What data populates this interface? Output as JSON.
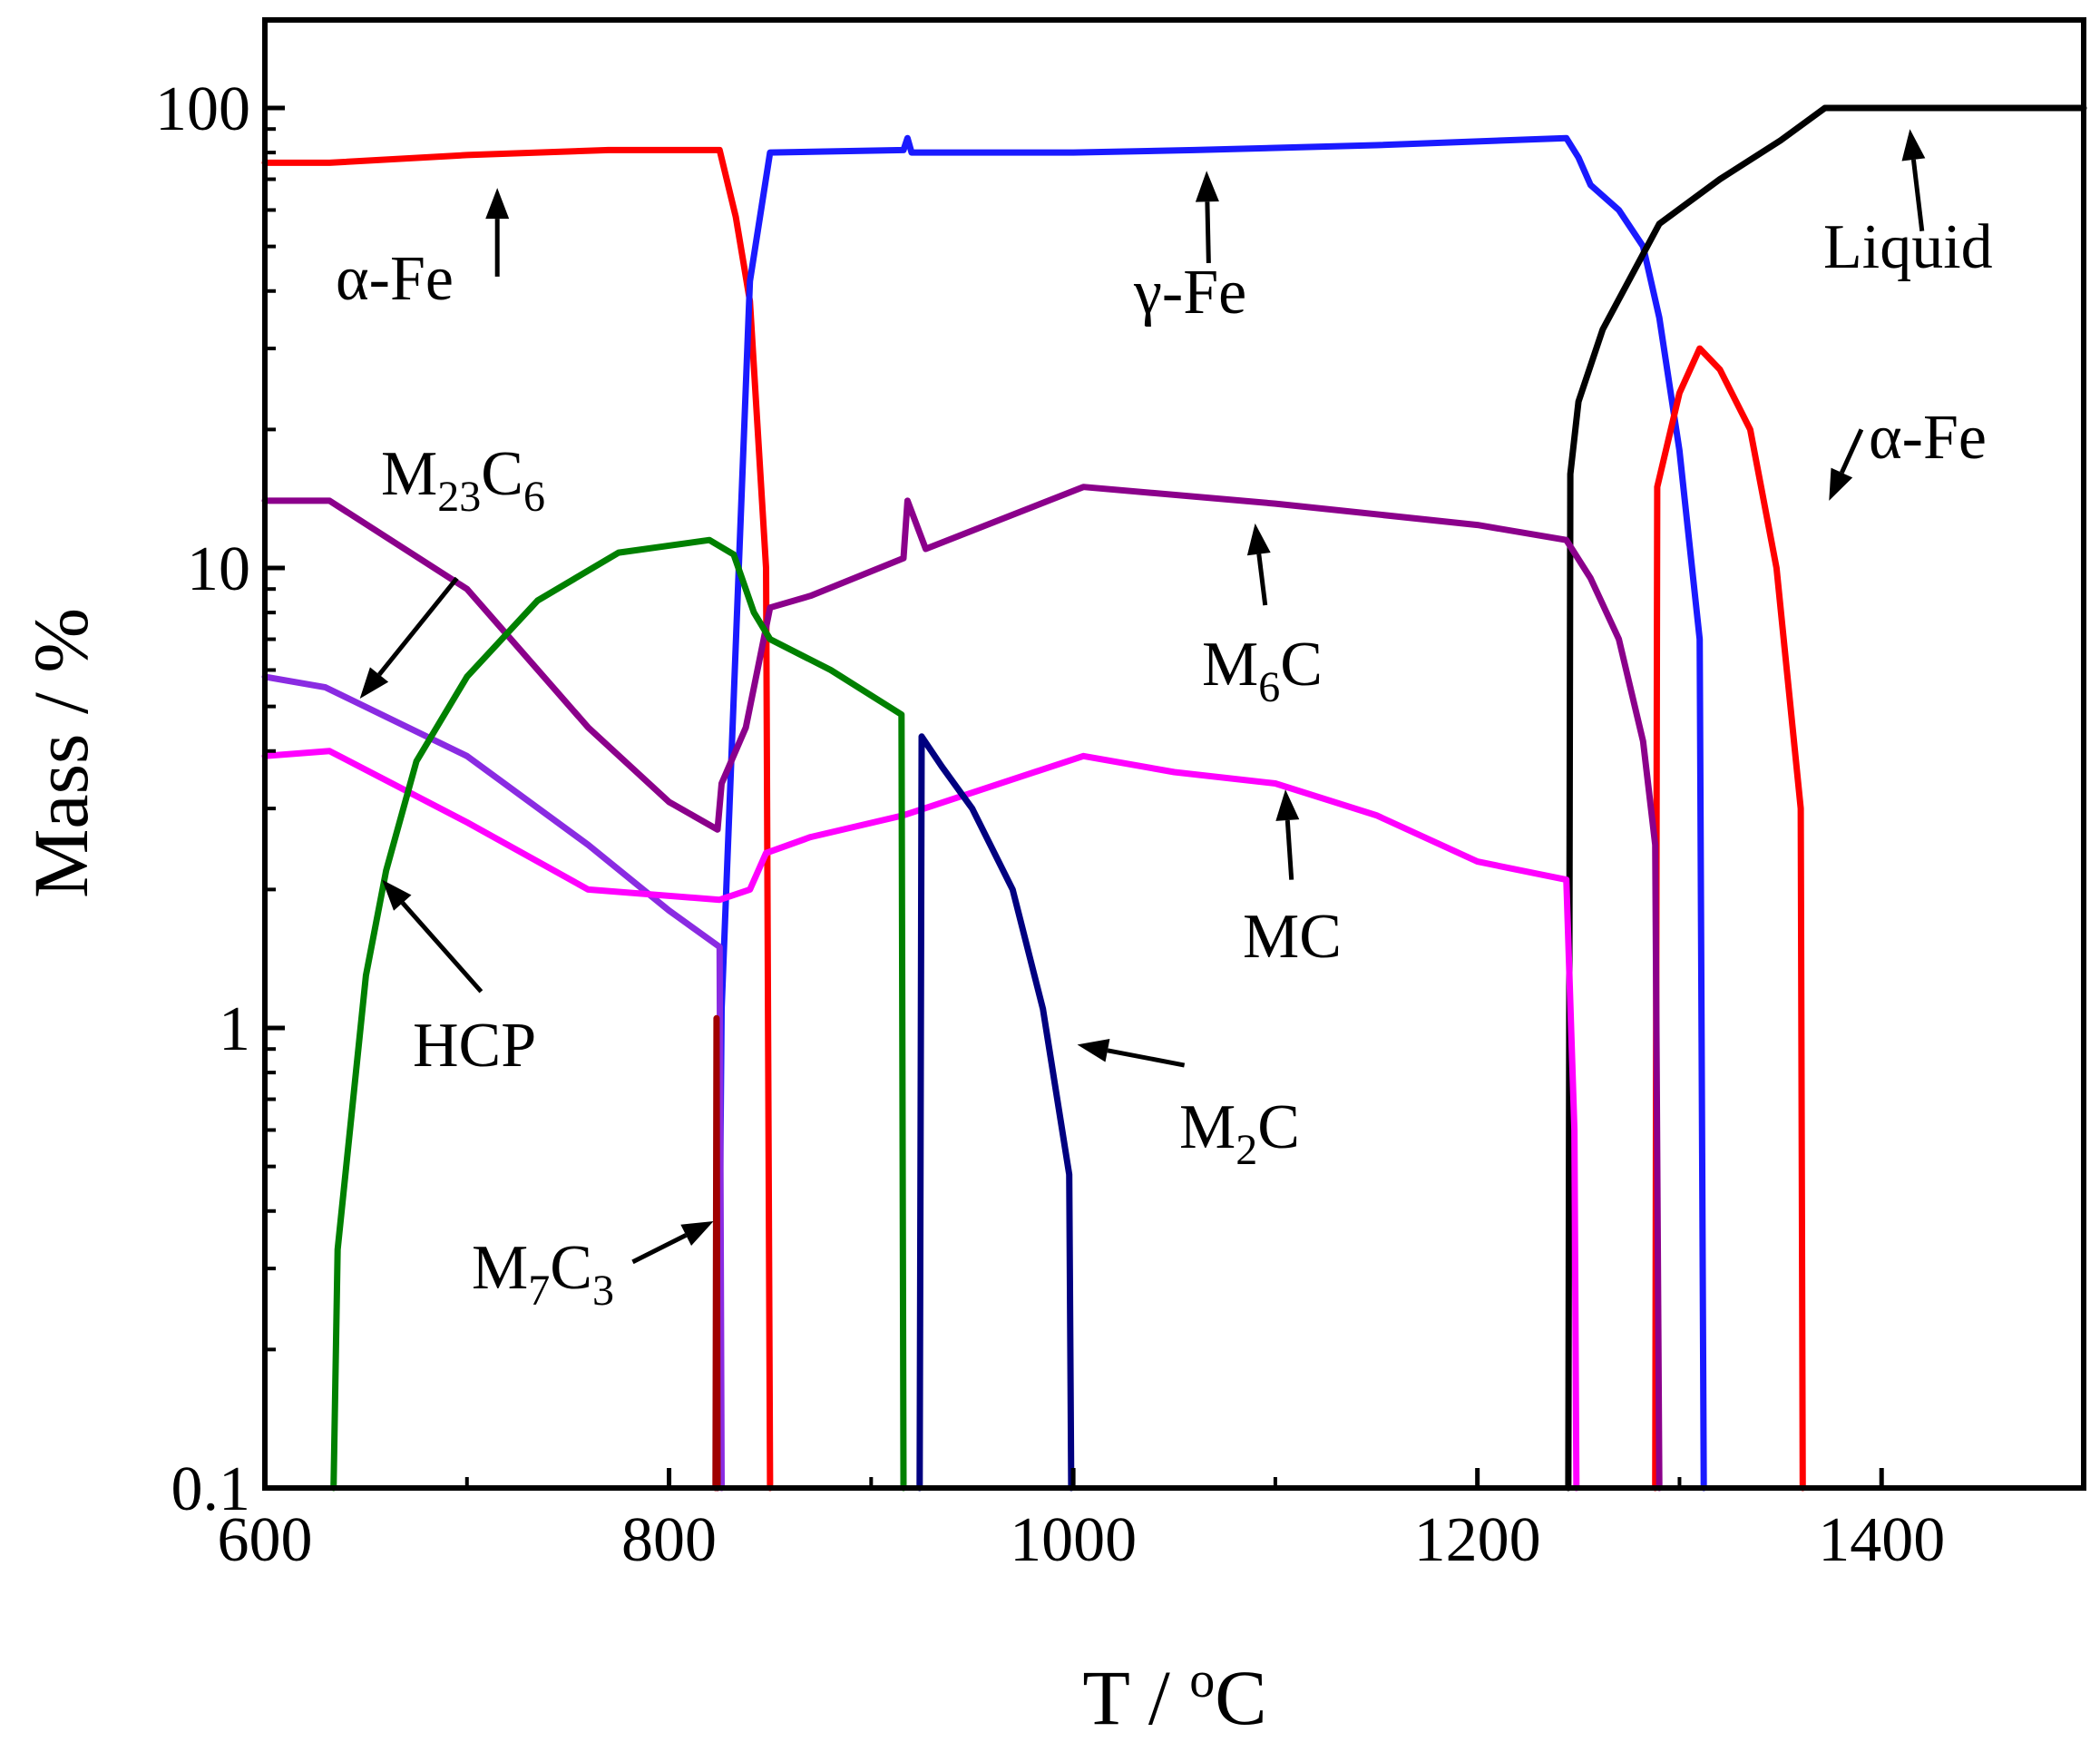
{
  "chart_data": {
    "type": "line",
    "title": "",
    "xlabel": "T / oC",
    "ylabel": "Mass / %",
    "xscale": "linear",
    "yscale": "log",
    "xlim": [
      600,
      1500
    ],
    "ylim": [
      0.1,
      160
    ],
    "grid": false,
    "legend": "none",
    "x_ticks": [
      {
        "value": 600,
        "label": "600"
      },
      {
        "value": 800,
        "label": "800"
      },
      {
        "value": 1000,
        "label": "1000"
      },
      {
        "value": 1200,
        "label": "1200"
      },
      {
        "value": 1400,
        "label": "1400"
      }
    ],
    "x_minor_ticks": [
      700,
      900,
      1100,
      1300,
      1500
    ],
    "y_ticks": [
      {
        "value": 0.1,
        "label": "0.1"
      },
      {
        "value": 1,
        "label": "1"
      },
      {
        "value": 10,
        "label": "10"
      },
      {
        "value": 100,
        "label": "100"
      }
    ],
    "y_minor_ticks": [
      0.2,
      0.3,
      0.4,
      0.5,
      0.6,
      0.7,
      0.8,
      0.9,
      2,
      3,
      4,
      5,
      6,
      7,
      8,
      9,
      20,
      30,
      40,
      50,
      60,
      70,
      80,
      90
    ],
    "series": [
      {
        "name": "α-Fe (low T)",
        "color": "#ff0000",
        "points": [
          [
            600,
            76
          ],
          [
            632,
            76
          ],
          [
            700,
            79
          ],
          [
            770,
            81
          ],
          [
            825,
            81
          ],
          [
            833,
            58
          ],
          [
            840,
            38
          ],
          [
            848,
            10
          ],
          [
            850,
            0.1
          ]
        ]
      },
      {
        "name": "γ-Fe",
        "color": "#1a1aff",
        "points": [
          [
            824,
            0.1
          ],
          [
            826,
            1.1
          ],
          [
            840,
            42
          ],
          [
            850,
            80
          ],
          [
            916,
            81
          ],
          [
            918,
            86
          ],
          [
            920,
            80
          ],
          [
            1000,
            80
          ],
          [
            1060,
            81
          ],
          [
            1150,
            83
          ],
          [
            1244,
            86
          ],
          [
            1250,
            78
          ],
          [
            1256,
            68
          ],
          [
            1270,
            60
          ],
          [
            1282,
            50
          ],
          [
            1290,
            35
          ],
          [
            1300,
            18
          ],
          [
            1310,
            7
          ],
          [
            1312,
            0.1
          ]
        ]
      },
      {
        "name": "Liquid",
        "color": "#000000",
        "points": [
          [
            1245,
            0.1
          ],
          [
            1246,
            16
          ],
          [
            1250,
            23
          ],
          [
            1262,
            33
          ],
          [
            1290,
            56
          ],
          [
            1320,
            70
          ],
          [
            1350,
            85
          ],
          [
            1372,
            100
          ],
          [
            1500,
            100
          ]
        ]
      },
      {
        "name": "α-Fe (high T)",
        "color": "#ff0000",
        "points": [
          [
            1288,
            0.1
          ],
          [
            1289,
            15
          ],
          [
            1300,
            24
          ],
          [
            1310,
            30
          ],
          [
            1320,
            27
          ],
          [
            1335,
            20
          ],
          [
            1348,
            10
          ],
          [
            1360,
            3
          ],
          [
            1361,
            0.1
          ]
        ]
      },
      {
        "name": "M6C",
        "color": "#8b008b",
        "points": [
          [
            600,
            14
          ],
          [
            632,
            14
          ],
          [
            700,
            9
          ],
          [
            760,
            4.5
          ],
          [
            800,
            3.1
          ],
          [
            824,
            2.7
          ],
          [
            826,
            3.4
          ],
          [
            838,
            4.5
          ],
          [
            850,
            8.2
          ],
          [
            870,
            8.7
          ],
          [
            916,
            10.5
          ],
          [
            918,
            14
          ],
          [
            927,
            11
          ],
          [
            1005,
            15
          ],
          [
            1100,
            13.8
          ],
          [
            1200,
            12.4
          ],
          [
            1244,
            11.5
          ],
          [
            1256,
            9.5
          ],
          [
            1270,
            7
          ],
          [
            1282,
            4.2
          ],
          [
            1288,
            2.5
          ],
          [
            1290,
            0.1
          ]
        ]
      },
      {
        "name": "M23C6",
        "color": "#8a2be2",
        "points": [
          [
            600,
            5.8
          ],
          [
            630,
            5.5
          ],
          [
            700,
            3.9
          ],
          [
            760,
            2.5
          ],
          [
            800,
            1.8
          ],
          [
            825,
            1.5
          ],
          [
            826,
            0.1
          ]
        ]
      },
      {
        "name": "MC",
        "color": "#ff00ff",
        "points": [
          [
            600,
            3.9
          ],
          [
            632,
            4
          ],
          [
            700,
            2.8
          ],
          [
            760,
            2
          ],
          [
            825,
            1.9
          ],
          [
            840,
            2
          ],
          [
            848,
            2.4
          ],
          [
            870,
            2.6
          ],
          [
            916,
            2.9
          ],
          [
            1005,
            3.9
          ],
          [
            1050,
            3.6
          ],
          [
            1100,
            3.4
          ],
          [
            1150,
            2.9
          ],
          [
            1200,
            2.3
          ],
          [
            1244,
            2.1
          ],
          [
            1248,
            0.6
          ],
          [
            1249,
            0.1
          ]
        ]
      },
      {
        "name": "HCP",
        "color": "#008000",
        "points": [
          [
            634,
            0.1
          ],
          [
            636,
            0.33
          ],
          [
            650,
            1.3
          ],
          [
            660,
            2.2
          ],
          [
            675,
            3.8
          ],
          [
            700,
            5.8
          ],
          [
            735,
            8.5
          ],
          [
            775,
            10.8
          ],
          [
            820,
            11.5
          ],
          [
            832,
            10.7
          ],
          [
            842,
            8
          ],
          [
            850,
            7
          ],
          [
            880,
            6
          ],
          [
            915,
            4.8
          ],
          [
            916,
            0.1
          ]
        ]
      },
      {
        "name": "M2C",
        "color": "#000080",
        "points": [
          [
            924,
            0.1
          ],
          [
            925,
            4.3
          ],
          [
            935,
            3.7
          ],
          [
            950,
            3
          ],
          [
            970,
            2
          ],
          [
            985,
            1.1
          ],
          [
            998,
            0.48
          ],
          [
            999,
            0.1
          ]
        ]
      },
      {
        "name": "M7C3",
        "color": "#a00000",
        "points": [
          [
            823,
            0.1
          ],
          [
            823.5,
            1.05
          ],
          [
            824,
            0.1
          ]
        ]
      }
    ],
    "annotations": [
      {
        "text": "α-Fe",
        "sub": "",
        "tail": "",
        "arrow_from": [
          715,
          43
        ],
        "arrow_to": [
          715,
          67
        ]
      },
      {
        "text": "γ-Fe",
        "sub": "",
        "tail": "",
        "arrow_from": [
          1067,
          46
        ],
        "arrow_to": [
          1066,
          73
        ]
      },
      {
        "text": "Liquid",
        "sub": "",
        "tail": "",
        "arrow_from": [
          1420,
          54
        ],
        "arrow_to": [
          1414,
          90
        ]
      },
      {
        "text": "α-Fe",
        "sub": "",
        "tail": "",
        "arrow_from": [
          1390,
          20
        ],
        "arrow_to": [
          1374,
          14
        ]
      },
      {
        "text": "M",
        "sub": "23",
        "tail": "C",
        "sub2": "6",
        "arrow_from": [
          695,
          9.5
        ],
        "arrow_to": [
          647,
          5.2
        ]
      },
      {
        "text": "M",
        "sub": "6",
        "tail": "C",
        "sub2": "",
        "arrow_from": [
          1095,
          8.3
        ],
        "arrow_to": [
          1090,
          12.5
        ]
      },
      {
        "text": "MC",
        "sub": "",
        "tail": "",
        "arrow_from": [
          1108,
          2.1
        ],
        "arrow_to": [
          1105,
          3.3
        ]
      },
      {
        "text": "HCP",
        "sub": "",
        "tail": "",
        "arrow_from": [
          707,
          1.2
        ],
        "arrow_to": [
          658,
          2.1
        ]
      },
      {
        "text": "M",
        "sub": "2",
        "tail": "C",
        "sub2": "",
        "arrow_from": [
          1055,
          0.83
        ],
        "arrow_to": [
          1002,
          0.92
        ]
      },
      {
        "text": "M",
        "sub": "7",
        "tail": "C",
        "sub2": "3",
        "arrow_from": [
          782,
          0.31
        ],
        "arrow_to": [
          822,
          0.38
        ]
      }
    ]
  }
}
